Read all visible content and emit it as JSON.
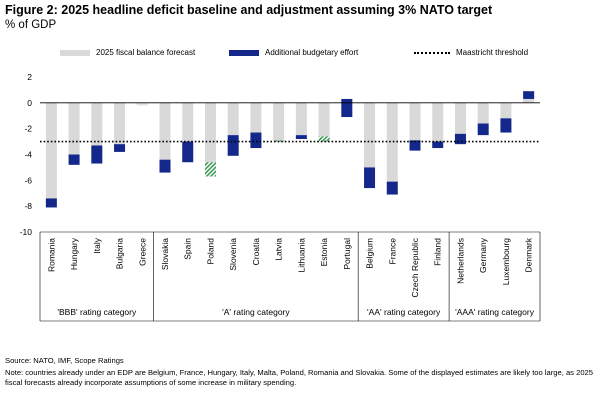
{
  "title": "Figure 2: 2025 headline deficit baseline and adjustment assuming 3% NATO target",
  "subtitle": "% of GDP",
  "legend": {
    "forecast": "2025 fiscal balance forecast",
    "effort": "Additional budgetary effort",
    "threshold": "Maastricht threshold"
  },
  "colors": {
    "forecast": "#d9d9d9",
    "effort": "#14288c",
    "hatch": "#3f9a55",
    "threshold": "#000000"
  },
  "notes": {
    "source": "Source: NATO, IMF, Scope Ratings",
    "note": "Note: countries already under an EDP are Belgium, France, Hungary, Italy, Malta, Poland, Romania and Slovakia. Some of the displayed estimates are likely too large, as 2025 fiscal forecasts already incorporate assumptions of some increase in military spending."
  },
  "chart_data": {
    "type": "bar",
    "ylabel": "% of GDP",
    "ylim": [
      -10,
      2
    ],
    "yticks": [
      -10,
      -8,
      -6,
      -4,
      -2,
      0,
      2
    ],
    "threshold": -3,
    "categories": [
      "Romania",
      "Hungary",
      "Italy",
      "Bulgaria",
      "Greece",
      "Slovakia",
      "Spain",
      "Poland",
      "Slovenia",
      "Croatia",
      "Latvia",
      "Lithuania",
      "Estonia",
      "Portugal",
      "Belgium",
      "France",
      "Czech Republic",
      "Finland",
      "Netherlands",
      "Germany",
      "Luxembourg",
      "Denmark"
    ],
    "series": [
      {
        "name": "2025 fiscal balance forecast",
        "values": [
          -7.4,
          -4.0,
          -3.3,
          -3.2,
          0.0,
          -4.4,
          -3.0,
          -5.7,
          -2.5,
          -2.3,
          -3.0,
          -2.5,
          -3.0,
          0.3,
          -5.0,
          -6.1,
          -2.9,
          -3.0,
          -2.4,
          -1.6,
          -1.2,
          0.9
        ]
      },
      {
        "name": "Additional budgetary effort",
        "values": [
          -0.7,
          -0.8,
          -1.4,
          -0.6,
          -0.2,
          -1.0,
          -1.6,
          1.1,
          -1.6,
          -1.2,
          0.1,
          -0.3,
          0.4,
          -1.4,
          -1.6,
          -1.0,
          -0.8,
          -0.5,
          -0.8,
          -0.9,
          -1.1,
          -0.6
        ]
      }
    ],
    "groups": [
      {
        "label": "'BBB' rating category",
        "count": 5
      },
      {
        "label": "'A' rating category",
        "count": 9
      },
      {
        "label": "'AA' rating category",
        "count": 4
      },
      {
        "label": "'AAA' rating category",
        "count": 4
      }
    ]
  }
}
